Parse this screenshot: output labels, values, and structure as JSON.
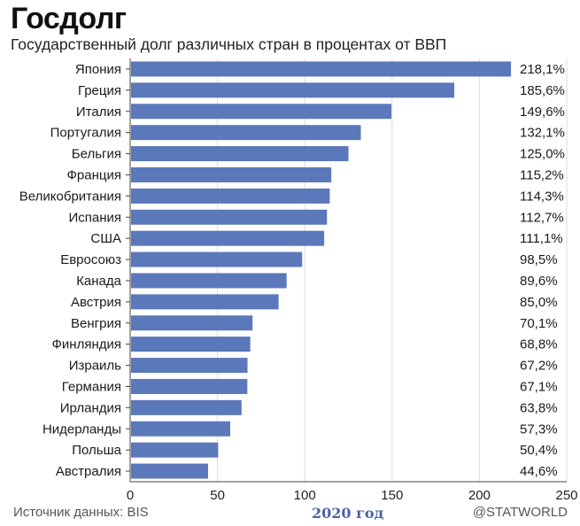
{
  "header": {
    "title": "Госдолг",
    "subtitle": "Государственный долг различных стран в процентах от ВВП"
  },
  "footer": {
    "source": "Источник данных: BIS",
    "year": "2020 год",
    "brand": "@STATWORLD"
  },
  "colors": {
    "bar": "#5b78ba",
    "grid": "#dcdcdc",
    "axis": "#444444"
  },
  "chart_data": {
    "type": "bar",
    "orientation": "horizontal",
    "categories": [
      "Япония",
      "Греция",
      "Италия",
      "Португалия",
      "Бельгия",
      "Франция",
      "Великобритания",
      "Испания",
      "США",
      "Евросоюз",
      "Канада",
      "Австрия",
      "Венгрия",
      "Финляндия",
      "Израиль",
      "Германия",
      "Ирландия",
      "Нидерланды",
      "Польша",
      "Австралия"
    ],
    "values": [
      218.1,
      185.6,
      149.6,
      132.1,
      125.0,
      115.2,
      114.3,
      112.7,
      111.1,
      98.5,
      89.6,
      85.0,
      70.1,
      68.8,
      67.2,
      67.1,
      63.8,
      57.3,
      50.4,
      44.6
    ],
    "value_labels": [
      "218,1%",
      "185,6%",
      "149,6%",
      "132,1%",
      "125,0%",
      "115,2%",
      "114,3%",
      "112,7%",
      "111,1%",
      "98,5%",
      "89,6%",
      "85,0%",
      "70,1%",
      "68,8%",
      "67,2%",
      "67,1%",
      "63,8%",
      "57,3%",
      "50,4%",
      "44,6%"
    ],
    "x_ticks": [
      0,
      50,
      100,
      150,
      200,
      250
    ],
    "x_tick_labels": [
      "0",
      "50",
      "100",
      "150",
      "200",
      "250"
    ],
    "xlim": [
      0,
      250
    ],
    "grid": true
  }
}
